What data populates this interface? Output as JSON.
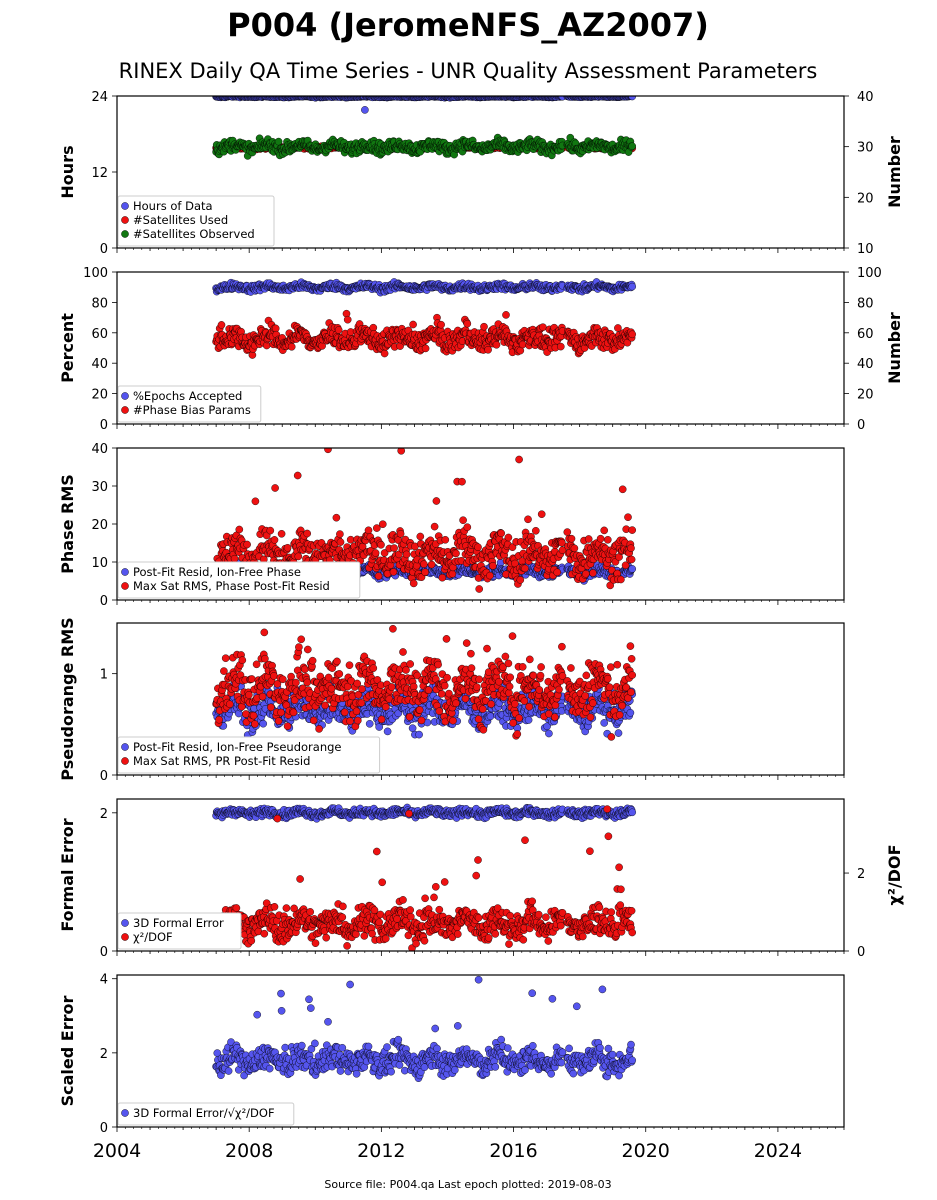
{
  "title": "P004 (JeromeNFS_AZ2007)",
  "subtitle": "RINEX Daily QA Time Series - UNR Quality Assessment Parameters",
  "footer": "Source file: P004.qa Last epoch plotted: 2019-08-03",
  "chart_data": {
    "type": "scatter",
    "x_axis": {
      "range": [
        2004,
        2026
      ],
      "ticks": [
        2004,
        2008,
        2012,
        2016,
        2020,
        2024
      ]
    },
    "data_span": [
      2007.0,
      2019.59
    ],
    "gap": [
      2017.5,
      2017.62
    ],
    "panels": [
      {
        "ylabel": "Hours",
        "ylim": [
          0,
          24
        ],
        "yticks": [
          0,
          12,
          24
        ],
        "right_ylabel": "Number",
        "right_ylim": [
          10,
          40
        ],
        "right_yticks": [
          10,
          20,
          30,
          40
        ],
        "series": [
          {
            "name": "Hours of Data",
            "color": "#5555ee",
            "axis": "left",
            "base": 23.9,
            "spread": 0.1,
            "min": 21.8
          },
          {
            "name": "#Satellites Used",
            "color": "#ee1111",
            "axis": "right",
            "base": 29.8,
            "spread": 0.3
          },
          {
            "name": "#Satellites Observed",
            "color": "#117711",
            "axis": "right",
            "base": 30.0,
            "spread": 1.0
          }
        ]
      },
      {
        "ylabel": "Percent",
        "ylim": [
          0,
          100
        ],
        "yticks": [
          0,
          20,
          40,
          60,
          80,
          100
        ],
        "right_ylabel": "Number",
        "right_ylim": [
          0,
          100
        ],
        "right_yticks": [
          0,
          20,
          40,
          60,
          80,
          100
        ],
        "series": [
          {
            "name": "%Epochs Accepted",
            "color": "#5555ee",
            "axis": "left",
            "base": 90,
            "spread": 2
          },
          {
            "name": "#Phase Bias Params",
            "color": "#ee1111",
            "axis": "left",
            "base": 56,
            "spread": 6,
            "max": 73
          }
        ]
      },
      {
        "ylabel": "Phase RMS",
        "ylim": [
          0,
          40
        ],
        "yticks": [
          0,
          10,
          20,
          30,
          40
        ],
        "series": [
          {
            "name": "Post-Fit Resid, Ion-Free Phase",
            "color": "#5555ee",
            "axis": "left",
            "base": 7.5,
            "spread": 1.2
          },
          {
            "name": "Max Sat RMS, Phase Post-Fit Resid",
            "color": "#ee1111",
            "axis": "left",
            "base": 12,
            "spread": 5,
            "max": 40
          }
        ]
      },
      {
        "ylabel": "Pseudorange RMS",
        "ylim": [
          0,
          1.5
        ],
        "yticks": [
          0,
          1
        ],
        "series": [
          {
            "name": "Post-Fit Resid, Ion-Free Pseudorange",
            "color": "#5555ee",
            "axis": "left",
            "base": 0.65,
            "spread": 0.15
          },
          {
            "name": "Max Sat RMS, PR Post-Fit Resid",
            "color": "#ee1111",
            "axis": "left",
            "base": 0.85,
            "spread": 0.25,
            "max": 1.45
          }
        ]
      },
      {
        "ylabel": "Formal Error",
        "ylim": [
          0,
          2.2
        ],
        "yticks": [
          0,
          2
        ],
        "right_ylabel": "χ²/DOF",
        "right_ylim": [
          0,
          3.9
        ],
        "right_yticks": [
          0,
          2
        ],
        "series": [
          {
            "name": "3D Formal Error",
            "color": "#5555ee",
            "axis": "left",
            "base": 2.0,
            "spread": 0.05
          },
          {
            "name": "χ²/DOF",
            "color": "#ee1111",
            "axis": "left",
            "base": 0.4,
            "spread": 0.2,
            "max": 2.1
          }
        ]
      },
      {
        "ylabel": "Scaled Error",
        "ylim": [
          0,
          4.1
        ],
        "yticks": [
          0,
          2,
          4
        ],
        "series": [
          {
            "name": "3D Formal Error/√χ²/DOF",
            "color": "#5555ee",
            "axis": "left",
            "base": 1.8,
            "spread": 0.3,
            "max": 4.0
          }
        ]
      }
    ]
  }
}
